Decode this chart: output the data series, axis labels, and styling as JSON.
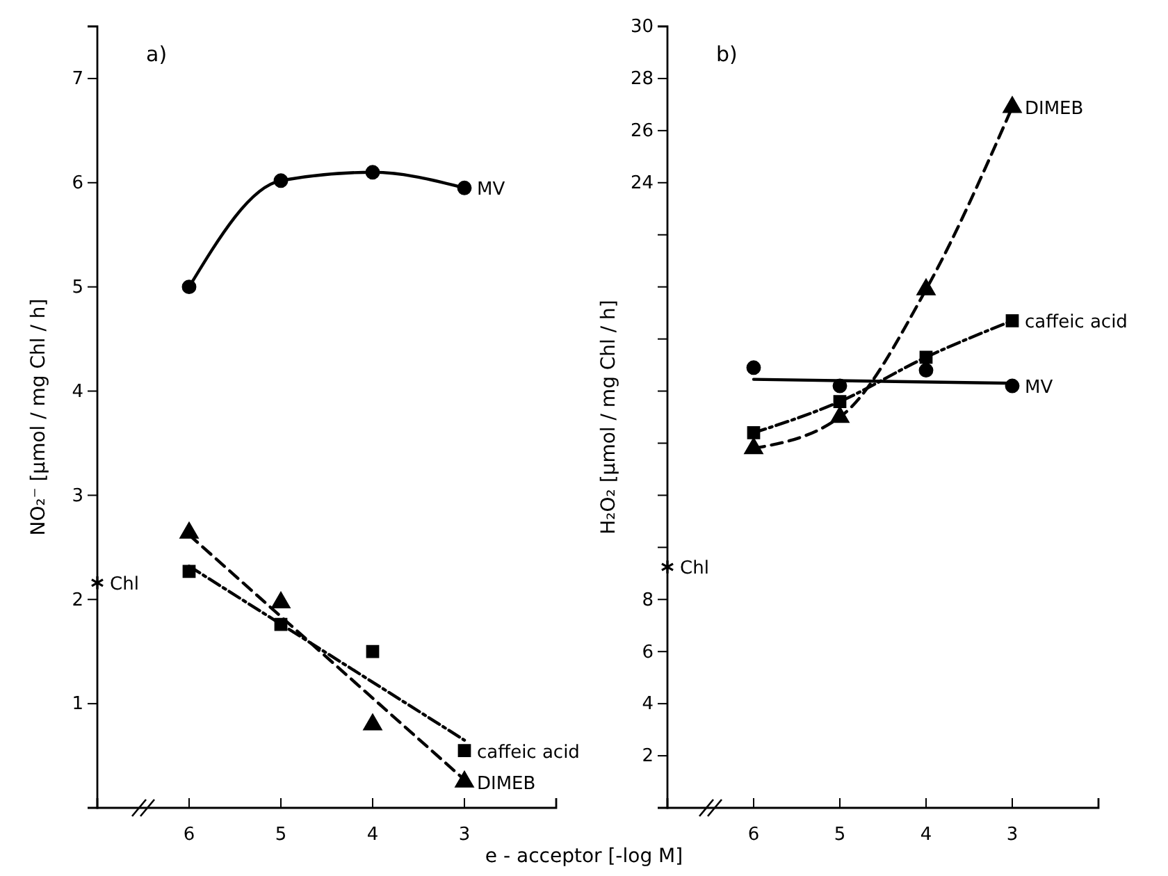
{
  "chart_data": [
    {
      "type": "line",
      "title": "a)",
      "xlabel": "e - acceptor  [-log M]",
      "ylabel": "NO₂⁻ [µmol / mg Chl / h]",
      "xlim": [
        7,
        2
      ],
      "xticks": [
        6,
        5,
        4,
        3
      ],
      "ylim": [
        0,
        7.5
      ],
      "yticks": [
        1,
        2,
        3,
        4,
        5,
        6,
        7
      ],
      "series": [
        {
          "name": "MV",
          "marker": "circle",
          "line_style": "solid",
          "color": "#000000",
          "x": [
            6,
            5,
            4,
            3
          ],
          "values": [
            5.0,
            6.02,
            6.1,
            5.95
          ]
        },
        {
          "name": "DIMEB",
          "type": "scatter",
          "marker": "triangle",
          "color": "#000000",
          "x": [
            6,
            5,
            4,
            3
          ],
          "values": [
            2.64,
            1.97,
            0.8,
            0.25
          ]
        },
        {
          "marker": "none",
          "line_style": "dashed",
          "color": "#000000",
          "x": [
            6,
            3
          ],
          "values": [
            2.62,
            0.27
          ]
        },
        {
          "name": "caffeic acid",
          "type": "scatter",
          "marker": "square",
          "color": "#000000",
          "x": [
            6,
            5,
            4,
            3
          ],
          "values": [
            2.27,
            1.76,
            1.5,
            0.55
          ]
        },
        {
          "marker": "none",
          "line_style": "dotted",
          "color": "#000000",
          "x": [
            6,
            3
          ],
          "values": [
            2.32,
            0.65
          ]
        },
        {
          "name": "Chl",
          "type": "scatter",
          "marker": "cross",
          "color": "#000000",
          "x": [
            7
          ],
          "values": [
            2.16
          ]
        }
      ]
    },
    {
      "type": "line",
      "title": "b)",
      "ylabel": "H₂O₂ [µmol / mg Chl / h]",
      "xlim": [
        7,
        2
      ],
      "xticks": [
        6,
        5,
        4,
        3
      ],
      "ylim": [
        0,
        30
      ],
      "yticks": [
        2,
        4,
        6,
        8,
        {
          "value": 10,
          "label": null
        },
        {
          "value": 12,
          "label": null
        },
        {
          "value": 14,
          "label": null
        },
        {
          "value": 16,
          "label": null
        },
        {
          "value": 18,
          "label": null
        },
        {
          "value": 20,
          "label": null
        },
        {
          "value": 22,
          "label": null
        },
        24,
        26,
        28,
        30
      ],
      "series": [
        {
          "name": "DIMEB",
          "marker": "triangle",
          "line_style": "dashed",
          "color": "#000000",
          "x": [
            6,
            5,
            4,
            3
          ],
          "values": [
            13.8,
            15.0,
            19.9,
            26.9
          ]
        },
        {
          "name": "caffeic acid",
          "marker": "square",
          "line_style": "dotted",
          "color": "#000000",
          "x": [
            6,
            5,
            4,
            3
          ],
          "values": [
            14.4,
            15.6,
            17.3,
            18.7
          ]
        },
        {
          "name": "MV",
          "type": "scatter",
          "marker": "circle",
          "color": "#000000",
          "x": [
            6,
            5,
            4,
            3
          ],
          "values": [
            16.9,
            16.2,
            16.8,
            16.2
          ]
        },
        {
          "marker": "none",
          "line_style": "solid",
          "color": "#000000",
          "x": [
            6,
            3
          ],
          "values": [
            16.45,
            16.3
          ]
        },
        {
          "name": "Chl",
          "type": "scatter",
          "marker": "cross",
          "color": "#000000",
          "x": [
            7
          ],
          "values": [
            9.25
          ]
        }
      ]
    }
  ]
}
